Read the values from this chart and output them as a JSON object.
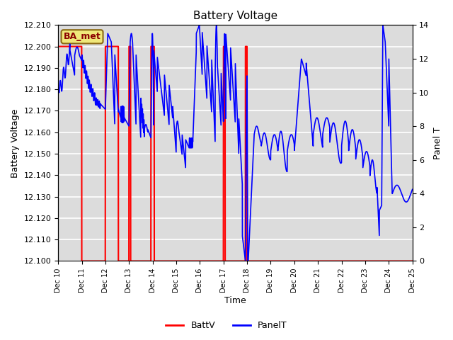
{
  "title": "Battery Voltage",
  "xlabel": "Time",
  "ylabel_left": "Battery Voltage",
  "ylabel_right": "Panel T",
  "xlim": [
    0,
    15
  ],
  "ylim_left": [
    12.1,
    12.21
  ],
  "ylim_right": [
    0,
    14
  ],
  "plot_bg_color": "#dcdcdc",
  "x_tick_labels": [
    "Dec 10",
    "Dec 11",
    "Dec 12",
    "Dec 13",
    "Dec 14",
    "Dec 15",
    "Dec 16",
    "Dec 17",
    "Dec 18",
    "Dec 19",
    "Dec 20",
    "Dec 21",
    "Dec 22",
    "Dec 23",
    "Dec 24",
    "Dec 25"
  ],
  "annotation_text": "BA_met",
  "annotation_bg": "#f0e87a",
  "annotation_border": "#8b6914",
  "battv_ranges": [
    [
      0.0,
      1.0
    ],
    [
      2.0,
      2.55
    ],
    [
      3.0,
      3.07
    ],
    [
      3.93,
      4.07
    ],
    [
      7.0,
      7.07
    ],
    [
      7.93,
      8.0
    ]
  ],
  "right_yticks": [
    0,
    2,
    4,
    6,
    8,
    10,
    12,
    14
  ]
}
